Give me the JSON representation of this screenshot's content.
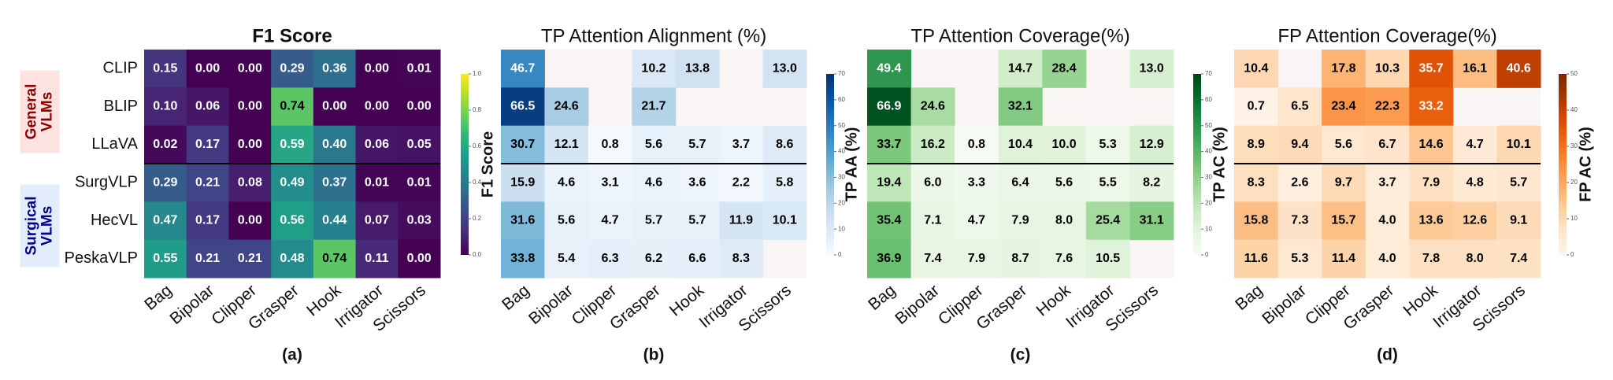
{
  "chart_data": [
    {
      "type": "heatmap",
      "title": "F1 Score",
      "caption": "(a)",
      "colorbar_label": "F1 Score",
      "row_groups": [
        {
          "name": "General VLMs",
          "color": "#8b0000",
          "background": "#fde2e2"
        },
        {
          "name": "Surgical VLMs",
          "color": "#00008b",
          "background": "#e3ecfb"
        }
      ],
      "rows": [
        "CLIP",
        "BLIP",
        "LLaVA",
        "SurgVLP",
        "HecVL",
        "PeskaVLP"
      ],
      "categories": [
        "Bag",
        "Bipolar",
        "Clipper",
        "Grasper",
        "Hook",
        "Irrigator",
        "Scissors"
      ],
      "values": [
        [
          0.15,
          0,
          0,
          0.29,
          0.36,
          0,
          0.01
        ],
        [
          0.1,
          0.06,
          0,
          0.74,
          0,
          0,
          0
        ],
        [
          0.02,
          0.17,
          0,
          0.59,
          0.4,
          0.06,
          0.05
        ],
        [
          0.29,
          0.21,
          0.08,
          0.49,
          0.37,
          0.01,
          0.01
        ],
        [
          0.47,
          0.17,
          0,
          0.56,
          0.44,
          0.07,
          0.03
        ],
        [
          0.55,
          0.21,
          0.21,
          0.48,
          0.74,
          0.11,
          0
        ]
      ],
      "value_labels": [
        [
          "0.15",
          "0.00",
          "0.00",
          "0.29",
          "0.36",
          "0.00",
          "0.01"
        ],
        [
          "0.10",
          "0.06",
          "0.00",
          "0.74",
          "0.00",
          "0.00",
          "0.00"
        ],
        [
          "0.02",
          "0.17",
          "0.00",
          "0.59",
          "0.40",
          "0.06",
          "0.05"
        ],
        [
          "0.29",
          "0.21",
          "0.08",
          "0.49",
          "0.37",
          "0.01",
          "0.01"
        ],
        [
          "0.47",
          "0.17",
          "0.00",
          "0.56",
          "0.44",
          "0.07",
          "0.03"
        ],
        [
          "0.55",
          "0.21",
          "0.21",
          "0.48",
          "0.74",
          "0.11",
          "0.00"
        ]
      ],
      "zlim": [
        0,
        1
      ],
      "zticks": [
        {
          "value": 0,
          "label": "0.0"
        },
        0.2,
        0.4,
        0.6,
        0.8,
        {
          "value": 1,
          "label": "1.0"
        }
      ],
      "colormap": [
        "#440154",
        "#482878",
        "#3e4989",
        "#31688e",
        "#26828e",
        "#1f9e89",
        "#35b779",
        "#6ece58",
        "#b5de2b",
        "#fde725"
      ]
    },
    {
      "type": "heatmap",
      "title": "TP Attention Alignment (%)",
      "caption": "(b)",
      "colorbar_label": "TP AA (%)",
      "categories": [
        "Bag",
        "Bipolar",
        "Clipper",
        "Grasper",
        "Hook",
        "Irrigator",
        "Scissors"
      ],
      "values": [
        [
          46.7,
          null,
          null,
          10.2,
          13.8,
          null,
          13.0
        ],
        [
          66.5,
          24.6,
          null,
          21.7,
          null,
          null,
          null
        ],
        [
          30.7,
          12.1,
          0.8,
          5.6,
          5.7,
          3.7,
          8.6
        ],
        [
          15.9,
          4.6,
          3.1,
          4.6,
          3.6,
          2.2,
          5.8
        ],
        [
          31.6,
          5.6,
          4.7,
          5.7,
          5.7,
          11.9,
          10.1
        ],
        [
          33.8,
          5.4,
          6.3,
          6.2,
          6.6,
          8.3,
          null
        ]
      ],
      "value_labels": [
        [
          "46.7",
          null,
          null,
          "10.2",
          "13.8",
          null,
          "13.0"
        ],
        [
          "66.5",
          "24.6",
          null,
          "21.7",
          null,
          null,
          null
        ],
        [
          "30.7",
          "12.1",
          "0.8",
          "5.6",
          "5.7",
          "3.7",
          "8.6"
        ],
        [
          "15.9",
          "4.6",
          "3.1",
          "4.6",
          "3.6",
          "2.2",
          "5.8"
        ],
        [
          "31.6",
          "5.6",
          "4.7",
          "5.7",
          "5.7",
          "11.9",
          "10.1"
        ],
        [
          "33.8",
          "5.4",
          "6.3",
          "6.2",
          "6.6",
          "8.3",
          null
        ]
      ],
      "zlim": [
        0,
        70
      ],
      "zticks": [
        0,
        10,
        20,
        30,
        40,
        50,
        60,
        70
      ],
      "colormap": [
        "#f7fbff",
        "#deebf7",
        "#c6dbef",
        "#9ecae1",
        "#6baed6",
        "#4292c6",
        "#2171b5",
        "#08519c",
        "#08306b"
      ]
    },
    {
      "type": "heatmap",
      "title": "TP Attention Coverage(%)",
      "caption": "(c)",
      "colorbar_label": "TP AC (%)",
      "categories": [
        "Bag",
        "Bipolar",
        "Clipper",
        "Grasper",
        "Hook",
        "Irrigator",
        "Scissors"
      ],
      "values": [
        [
          49.4,
          null,
          null,
          14.7,
          28.4,
          null,
          13.0
        ],
        [
          66.9,
          24.6,
          null,
          32.1,
          null,
          null,
          null
        ],
        [
          33.7,
          16.2,
          0.8,
          10.4,
          10.0,
          5.3,
          12.9
        ],
        [
          19.4,
          6.0,
          3.3,
          6.4,
          5.6,
          5.5,
          8.2
        ],
        [
          35.4,
          7.1,
          4.7,
          7.9,
          8.0,
          25.4,
          31.1
        ],
        [
          36.9,
          7.4,
          7.9,
          8.7,
          7.6,
          10.5,
          null
        ]
      ],
      "value_labels": [
        [
          "49.4",
          null,
          null,
          "14.7",
          "28.4",
          null,
          "13.0"
        ],
        [
          "66.9",
          "24.6",
          null,
          "32.1",
          null,
          null,
          null
        ],
        [
          "33.7",
          "16.2",
          "0.8",
          "10.4",
          "10.0",
          "5.3",
          "12.9"
        ],
        [
          "19.4",
          "6.0",
          "3.3",
          "6.4",
          "5.6",
          "5.5",
          "8.2"
        ],
        [
          "35.4",
          "7.1",
          "4.7",
          "7.9",
          "8.0",
          "25.4",
          "31.1"
        ],
        [
          "36.9",
          "7.4",
          "7.9",
          "8.7",
          "7.6",
          "10.5",
          null
        ]
      ],
      "zlim": [
        0,
        70
      ],
      "zticks": [
        0,
        10,
        20,
        30,
        40,
        50,
        60,
        70
      ],
      "colormap": [
        "#f7fcf5",
        "#e5f5e0",
        "#c7e9c0",
        "#a1d99b",
        "#74c476",
        "#41ab5d",
        "#238b45",
        "#006d2c",
        "#00441b"
      ]
    },
    {
      "type": "heatmap",
      "title": "FP Attention Coverage(%)",
      "caption": "(d)",
      "colorbar_label": "FP AC (%)",
      "categories": [
        "Bag",
        "Bipolar",
        "Clipper",
        "Grasper",
        "Hook",
        "Irrigator",
        "Scissors"
      ],
      "values": [
        [
          10.4,
          null,
          17.8,
          10.3,
          35.7,
          16.1,
          40.6
        ],
        [
          0.7,
          6.5,
          23.4,
          22.3,
          33.2,
          null,
          null
        ],
        [
          8.9,
          9.4,
          5.6,
          6.7,
          14.6,
          4.7,
          10.1
        ],
        [
          8.3,
          2.6,
          9.7,
          3.7,
          7.9,
          4.8,
          5.7
        ],
        [
          15.8,
          7.3,
          15.7,
          4.0,
          13.6,
          12.6,
          9.1
        ],
        [
          11.6,
          5.3,
          11.4,
          4.0,
          7.8,
          8.0,
          7.4
        ]
      ],
      "value_labels": [
        [
          "10.4",
          null,
          "17.8",
          "10.3",
          "35.7",
          "16.1",
          "40.6"
        ],
        [
          "0.7",
          "6.5",
          "23.4",
          "22.3",
          "33.2",
          null,
          null
        ],
        [
          "8.9",
          "9.4",
          "5.6",
          "6.7",
          "14.6",
          "4.7",
          "10.1"
        ],
        [
          "8.3",
          "2.6",
          "9.7",
          "3.7",
          "7.9",
          "4.8",
          "5.7"
        ],
        [
          "15.8",
          "7.3",
          "15.7",
          "4.0",
          "13.6",
          "12.6",
          "9.1"
        ],
        [
          "11.6",
          "5.3",
          "11.4",
          "4.0",
          "7.8",
          "8.0",
          "7.4"
        ]
      ],
      "zlim": [
        0,
        50
      ],
      "zticks": [
        0,
        10,
        20,
        30,
        40,
        50
      ],
      "colormap": [
        "#fff5eb",
        "#fee6ce",
        "#fdd0a2",
        "#fdae6b",
        "#fd8d3c",
        "#f16913",
        "#d94801",
        "#a63603",
        "#7f2704"
      ]
    }
  ]
}
